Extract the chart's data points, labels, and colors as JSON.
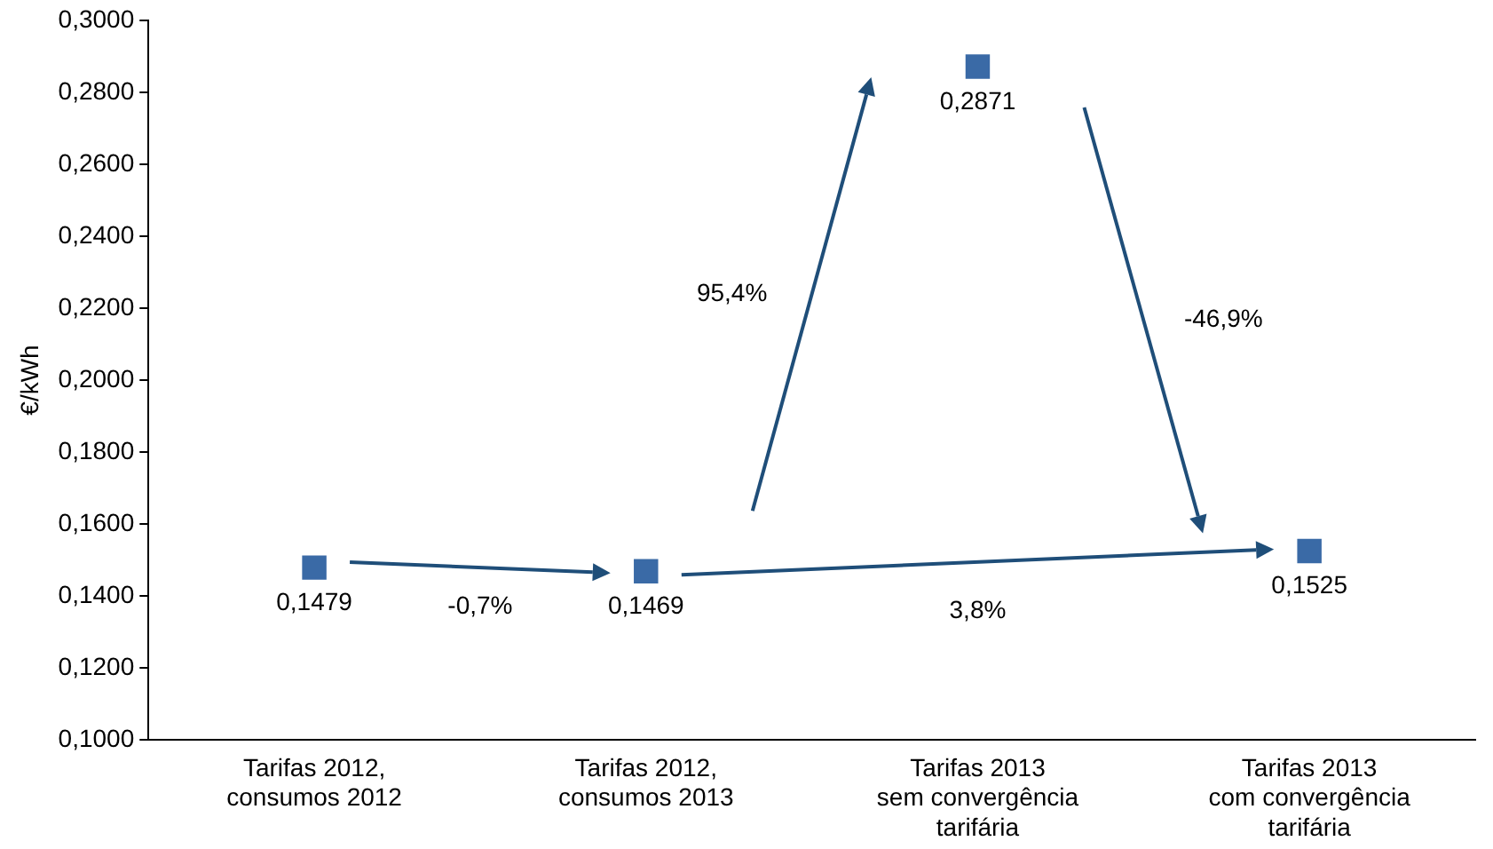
{
  "chart_data": {
    "type": "scatter",
    "marker": "square",
    "ylabel": "€/kWh",
    "categories": [
      "Tarifas 2012,\nconsumos 2012",
      "Tarifas 2012,\nconsumos 2013",
      "Tarifas 2013\nsem convergência\ntarifária",
      "Tarifas 2013\ncom convergência\ntarifária"
    ],
    "series": [
      {
        "color": "#3a6aa6",
        "values": [
          0.1479,
          0.1469,
          0.2871,
          0.1525
        ],
        "value_labels": [
          "0,1479",
          "0,1469",
          "0,2871",
          "0,1525"
        ]
      }
    ],
    "ylim": [
      0.1,
      0.3
    ],
    "yticks": [
      {
        "value": 0.1,
        "label": "0,1000"
      },
      {
        "value": 0.12,
        "label": "0,1200"
      },
      {
        "value": 0.14,
        "label": "0,1400"
      },
      {
        "value": 0.16,
        "label": "0,1600"
      },
      {
        "value": 0.18,
        "label": "0,1800"
      },
      {
        "value": 0.2,
        "label": "0,2000"
      },
      {
        "value": 0.22,
        "label": "0,2200"
      },
      {
        "value": 0.24,
        "label": "0,2400"
      },
      {
        "value": 0.26,
        "label": "0,2600"
      },
      {
        "value": 0.28,
        "label": "0,2800"
      },
      {
        "value": 0.3,
        "label": "0,3000"
      }
    ],
    "annotations": [
      "-0,7%",
      "95,4%",
      "-46,9%",
      "3,8%"
    ],
    "grid": false,
    "legend": false
  }
}
